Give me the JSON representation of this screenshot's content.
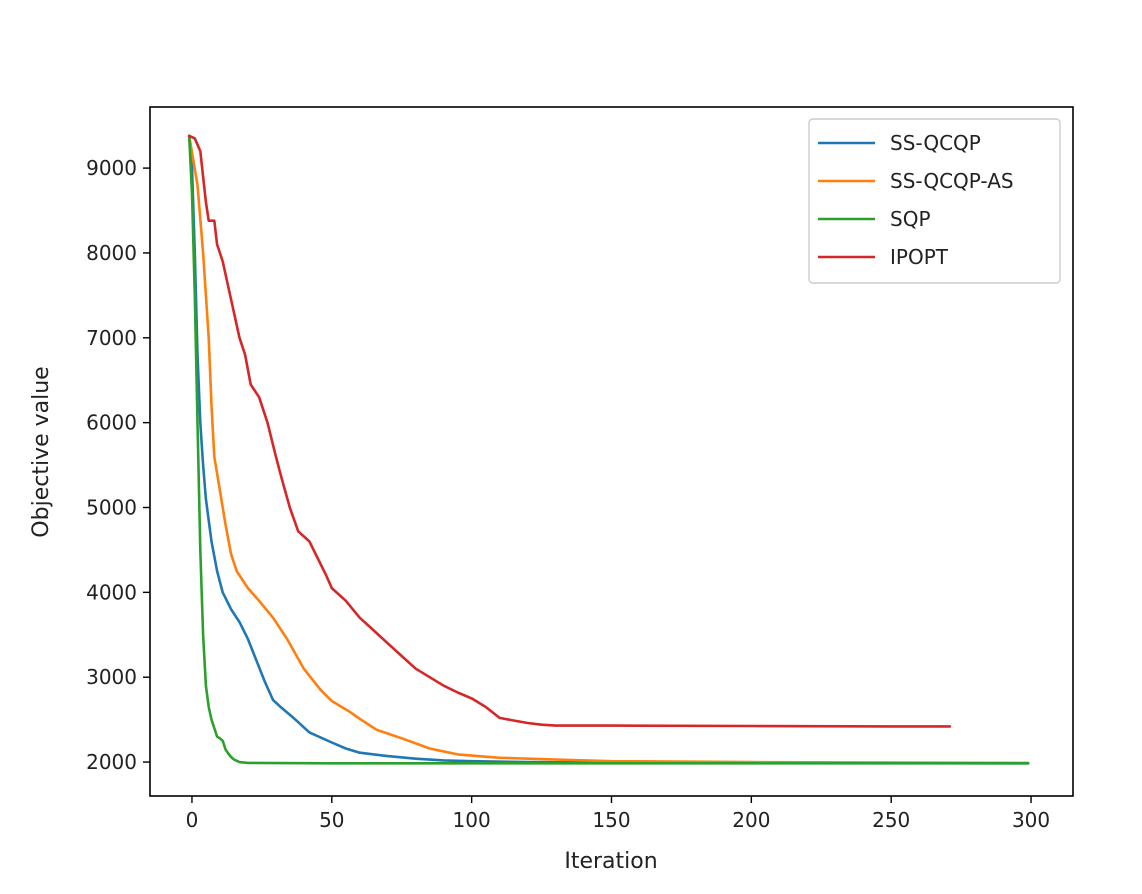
{
  "chart_data": {
    "type": "line",
    "title": "",
    "xlabel": "Iteration",
    "ylabel": "Objective value",
    "xlim": [
      -15,
      315
    ],
    "ylim": [
      1600,
      9720
    ],
    "xticks": [
      0,
      50,
      100,
      150,
      200,
      250,
      300
    ],
    "yticks": [
      2000,
      3000,
      4000,
      5000,
      6000,
      7000,
      8000,
      9000
    ],
    "grid": false,
    "legend_position": "top-right",
    "series": [
      {
        "name": "SS-QCQP",
        "color": "#1f77b4",
        "points": [
          [
            -1,
            9380
          ],
          [
            0,
            9000
          ],
          [
            1,
            8000
          ],
          [
            2,
            6800
          ],
          [
            3,
            6000
          ],
          [
            4,
            5500
          ],
          [
            5,
            5100
          ],
          [
            7,
            4600
          ],
          [
            9,
            4250
          ],
          [
            11,
            4000
          ],
          [
            14,
            3800
          ],
          [
            17,
            3650
          ],
          [
            20,
            3450
          ],
          [
            23,
            3200
          ],
          [
            26,
            2950
          ],
          [
            29,
            2730
          ],
          [
            32,
            2640
          ],
          [
            36,
            2530
          ],
          [
            42,
            2350
          ],
          [
            50,
            2230
          ],
          [
            55,
            2160
          ],
          [
            60,
            2110
          ],
          [
            70,
            2070
          ],
          [
            80,
            2040
          ],
          [
            90,
            2020
          ],
          [
            100,
            2010
          ],
          [
            120,
            2000
          ],
          [
            150,
            1995
          ],
          [
            200,
            1990
          ],
          [
            250,
            1988
          ],
          [
            299,
            1985
          ]
        ]
      },
      {
        "name": "SS-QCQP-AS",
        "color": "#ff7f0e",
        "points": [
          [
            -1,
            9380
          ],
          [
            2,
            8800
          ],
          [
            4,
            8000
          ],
          [
            6,
            7000
          ],
          [
            7,
            6200
          ],
          [
            8,
            5600
          ],
          [
            10,
            5200
          ],
          [
            12,
            4800
          ],
          [
            14,
            4450
          ],
          [
            16,
            4250
          ],
          [
            20,
            4050
          ],
          [
            24,
            3900
          ],
          [
            29,
            3700
          ],
          [
            34,
            3450
          ],
          [
            40,
            3100
          ],
          [
            46,
            2850
          ],
          [
            50,
            2720
          ],
          [
            56,
            2600
          ],
          [
            60,
            2510
          ],
          [
            66,
            2380
          ],
          [
            75,
            2280
          ],
          [
            85,
            2160
          ],
          [
            95,
            2090
          ],
          [
            110,
            2050
          ],
          [
            130,
            2030
          ],
          [
            150,
            2010
          ],
          [
            200,
            2000
          ],
          [
            250,
            1995
          ],
          [
            299,
            1990
          ]
        ]
      },
      {
        "name": "SQP",
        "color": "#2ca02c",
        "points": [
          [
            -1,
            9380
          ],
          [
            0,
            8700
          ],
          [
            1,
            7500
          ],
          [
            2,
            6000
          ],
          [
            3,
            4500
          ],
          [
            4,
            3500
          ],
          [
            5,
            2900
          ],
          [
            6,
            2650
          ],
          [
            7,
            2500
          ],
          [
            8,
            2400
          ],
          [
            9,
            2300
          ],
          [
            10,
            2280
          ],
          [
            11,
            2250
          ],
          [
            12,
            2150
          ],
          [
            13,
            2100
          ],
          [
            14,
            2060
          ],
          [
            15,
            2030
          ],
          [
            17,
            2000
          ],
          [
            20,
            1990
          ],
          [
            30,
            1988
          ],
          [
            50,
            1985
          ],
          [
            100,
            1985
          ],
          [
            200,
            1985
          ],
          [
            299,
            1985
          ]
        ]
      },
      {
        "name": "IPOPT",
        "color": "#d62728",
        "points": [
          [
            -1,
            9380
          ],
          [
            1,
            9350
          ],
          [
            3,
            9200
          ],
          [
            4,
            8900
          ],
          [
            5,
            8600
          ],
          [
            6,
            8380
          ],
          [
            8,
            8380
          ],
          [
            9,
            8100
          ],
          [
            11,
            7900
          ],
          [
            13,
            7600
          ],
          [
            15,
            7300
          ],
          [
            17,
            7000
          ],
          [
            19,
            6800
          ],
          [
            21,
            6450
          ],
          [
            24,
            6300
          ],
          [
            27,
            6000
          ],
          [
            30,
            5600
          ],
          [
            32,
            5350
          ],
          [
            35,
            5000
          ],
          [
            38,
            4720
          ],
          [
            42,
            4600
          ],
          [
            45,
            4400
          ],
          [
            48,
            4200
          ],
          [
            50,
            4050
          ],
          [
            55,
            3900
          ],
          [
            60,
            3700
          ],
          [
            65,
            3550
          ],
          [
            70,
            3400
          ],
          [
            75,
            3250
          ],
          [
            80,
            3100
          ],
          [
            85,
            3000
          ],
          [
            90,
            2900
          ],
          [
            95,
            2820
          ],
          [
            100,
            2750
          ],
          [
            105,
            2650
          ],
          [
            110,
            2520
          ],
          [
            115,
            2490
          ],
          [
            120,
            2460
          ],
          [
            125,
            2440
          ],
          [
            130,
            2430
          ],
          [
            150,
            2430
          ],
          [
            200,
            2425
          ],
          [
            250,
            2420
          ],
          [
            271,
            2420
          ]
        ]
      }
    ]
  }
}
